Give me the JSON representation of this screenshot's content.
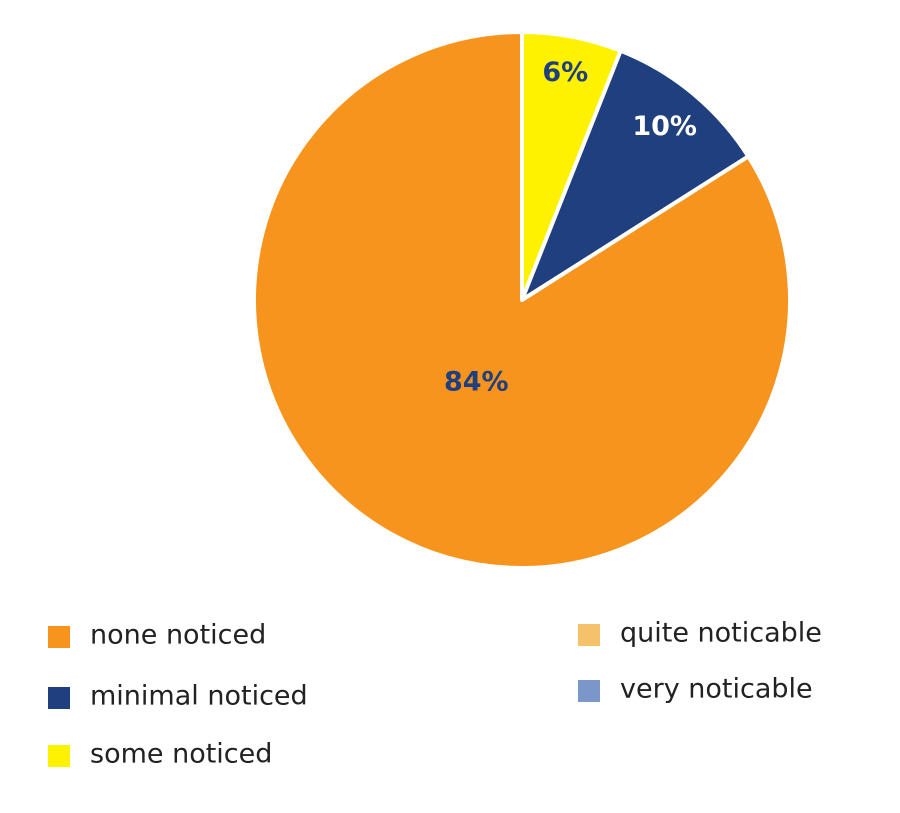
{
  "chart_data": {
    "type": "pie",
    "categories": [
      "none noticed",
      "minimal noticed",
      "some noticed",
      "quite noticable",
      "very noticable"
    ],
    "values": [
      84,
      10,
      6,
      0,
      0
    ],
    "value_labels": [
      "84%",
      "10%",
      "6%",
      null,
      null
    ],
    "colors": [
      "#f7941d",
      "#1f3f7f",
      "#fff200",
      "#f5c26b",
      "#7b96c8"
    ]
  }
}
